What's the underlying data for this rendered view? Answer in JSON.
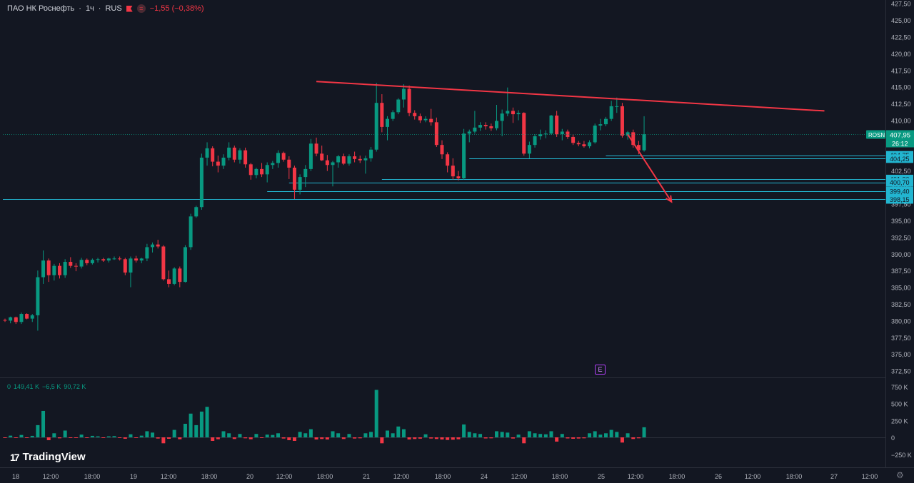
{
  "header": {
    "symbol": "ПАО НК Роснефть",
    "interval": "1ч",
    "exchange": "RUS",
    "dot": "·",
    "change": "−1,55 (−0,38%)",
    "eq_icon": "="
  },
  "volume_header": {
    "v1": "0",
    "v2": "149,41 K",
    "v3": "−6,5 K",
    "v4": "90,72 K"
  },
  "logo": {
    "text": "TradingView",
    "mark": "17"
  },
  "earnings_badge": "E",
  "settings_icon": "⚙",
  "colors": {
    "up": "#089981",
    "down": "#f23645",
    "bg": "#131722",
    "hline": "#22b5d0",
    "trend": "#f23645"
  },
  "chart_data": {
    "type": "candlestick",
    "price_axis": {
      "ticks": [
        "427,50",
        "425,00",
        "422,50",
        "420,00",
        "417,50",
        "415,00",
        "412,50",
        "410,00",
        "407,50",
        "405,00",
        "402,50",
        "400,00",
        "397,50",
        "395,00",
        "392,50",
        "390,00",
        "387,50",
        "385,00",
        "382,50",
        "380,00",
        "377,50",
        "375,00",
        "372,50"
      ],
      "ylim": [
        371.5,
        428
      ]
    },
    "volume_axis": {
      "ticks": [
        "750 K",
        "500 K",
        "250 K",
        "0",
        "−250 K"
      ]
    },
    "time_axis": {
      "labels": [
        "18",
        "12:00",
        "18:00",
        "19",
        "12:00",
        "18:00",
        "20",
        "12:00",
        "18:00",
        "21",
        "12:00",
        "18:00",
        "24",
        "12:00",
        "18:00",
        "25",
        "12:00",
        "18:00",
        "26",
        "12:00",
        "18:00",
        "27",
        "12:00"
      ]
    },
    "candles": [
      [
        380.1,
        380.3,
        379.8,
        380.0,
        30
      ],
      [
        380.0,
        380.6,
        379.6,
        380.5,
        25
      ],
      [
        380.5,
        380.6,
        379.5,
        379.8,
        20
      ],
      [
        379.8,
        381.2,
        379.5,
        381.0,
        35
      ],
      [
        381.0,
        381.1,
        380.2,
        380.3,
        30
      ],
      [
        380.3,
        381.0,
        379.8,
        380.8,
        22
      ],
      [
        380.8,
        387.5,
        378.5,
        386.5,
        180
      ],
      [
        386.5,
        390.5,
        385.5,
        389.0,
        390
      ],
      [
        389.0,
        389.3,
        385.8,
        386.8,
        120
      ],
      [
        386.8,
        388.5,
        386.0,
        388.2,
        60
      ],
      [
        388.2,
        388.6,
        386.3,
        386.8,
        40
      ],
      [
        386.8,
        389.2,
        386.4,
        388.8,
        100
      ],
      [
        388.8,
        389.5,
        387.9,
        388.2,
        30
      ],
      [
        388.2,
        388.6,
        387.4,
        388.1,
        25
      ],
      [
        388.1,
        389.4,
        387.8,
        389.1,
        40
      ],
      [
        389.1,
        389.3,
        388.3,
        388.6,
        20
      ],
      [
        388.6,
        389.3,
        388.4,
        389.1,
        22
      ],
      [
        389.1,
        389.4,
        388.7,
        389.2,
        15
      ],
      [
        389.2,
        389.4,
        388.8,
        389.0,
        12
      ],
      [
        389.0,
        389.4,
        388.7,
        389.3,
        15
      ],
      [
        389.3,
        389.6,
        389.1,
        389.3,
        18
      ],
      [
        389.3,
        389.6,
        389.0,
        389.2,
        20
      ],
      [
        389.2,
        389.4,
        386.8,
        387.2,
        60
      ],
      [
        387.2,
        389.6,
        385.0,
        389.3,
        45
      ],
      [
        389.3,
        389.7,
        388.7,
        389.0,
        30
      ],
      [
        389.0,
        389.4,
        388.6,
        389.3,
        25
      ],
      [
        389.3,
        391.5,
        388.9,
        391.0,
        90
      ],
      [
        391.0,
        391.7,
        390.2,
        391.4,
        70
      ],
      [
        391.4,
        392.1,
        390.8,
        391.1,
        50
      ],
      [
        391.1,
        391.3,
        386.0,
        386.2,
        250
      ],
      [
        386.2,
        387.5,
        385.0,
        385.5,
        60
      ],
      [
        385.5,
        388.0,
        385.3,
        387.8,
        110
      ],
      [
        387.8,
        388.1,
        385.0,
        385.8,
        80
      ],
      [
        385.8,
        391.3,
        385.7,
        391.0,
        200
      ],
      [
        391.0,
        396.0,
        390.6,
        395.6,
        350
      ],
      [
        395.6,
        397.2,
        395.4,
        397.0,
        180
      ],
      [
        397.0,
        405.0,
        396.6,
        404.4,
        380
      ],
      [
        404.4,
        406.7,
        403.2,
        405.8,
        450
      ],
      [
        405.8,
        406.1,
        403.1,
        403.8,
        150
      ],
      [
        403.8,
        404.7,
        402.2,
        403.2,
        80
      ],
      [
        403.2,
        404.9,
        402.7,
        404.4,
        90
      ],
      [
        404.4,
        406.7,
        404.0,
        405.9,
        60
      ],
      [
        405.9,
        406.2,
        403.7,
        404.1,
        70
      ],
      [
        404.1,
        405.8,
        403.5,
        405.5,
        50
      ],
      [
        405.5,
        405.9,
        402.9,
        403.4,
        40
      ],
      [
        403.4,
        403.6,
        401.1,
        401.8,
        80
      ],
      [
        401.8,
        402.9,
        401.3,
        402.7,
        50
      ],
      [
        402.7,
        403.6,
        401.5,
        401.9,
        30
      ],
      [
        401.9,
        403.7,
        400.7,
        403.3,
        40
      ],
      [
        403.3,
        403.9,
        402.7,
        403.6,
        35
      ],
      [
        403.6,
        405.5,
        402.9,
        405.1,
        60
      ],
      [
        405.1,
        405.3,
        403.8,
        404.1,
        50
      ],
      [
        404.1,
        404.6,
        401.2,
        402.9,
        120
      ],
      [
        402.9,
        403.2,
        398.2,
        399.6,
        150
      ],
      [
        399.6,
        401.9,
        398.9,
        401.5,
        80
      ],
      [
        401.5,
        403.3,
        400.0,
        402.7,
        60
      ],
      [
        402.7,
        407.2,
        402.4,
        406.5,
        120
      ],
      [
        406.5,
        407.4,
        404.6,
        405.0,
        90
      ],
      [
        405.0,
        406.2,
        403.9,
        404.0,
        70
      ],
      [
        404.0,
        404.8,
        402.4,
        403.3,
        90
      ],
      [
        403.3,
        403.9,
        400.1,
        403.7,
        90
      ],
      [
        403.7,
        404.8,
        402.9,
        404.6,
        60
      ],
      [
        404.6,
        405.0,
        403.3,
        403.5,
        70
      ],
      [
        403.5,
        404.9,
        403.2,
        404.6,
        50
      ],
      [
        404.6,
        405.3,
        403.7,
        404.2,
        50
      ],
      [
        404.2,
        404.7,
        403.6,
        404.0,
        40
      ],
      [
        404.0,
        404.7,
        402.0,
        404.3,
        60
      ],
      [
        404.3,
        406.0,
        403.8,
        405.6,
        80
      ],
      [
        405.6,
        415.6,
        405.3,
        412.6,
        700
      ],
      [
        412.6,
        413.9,
        408.2,
        409.0,
        250
      ],
      [
        409.0,
        410.6,
        407.0,
        410.2,
        100
      ],
      [
        410.2,
        411.5,
        409.9,
        411.2,
        60
      ],
      [
        411.2,
        413.3,
        410.9,
        413.1,
        160
      ],
      [
        413.1,
        415.4,
        411.9,
        414.7,
        120
      ],
      [
        414.7,
        415.2,
        410.6,
        411.1,
        90
      ],
      [
        411.1,
        411.5,
        410.1,
        410.6,
        70
      ],
      [
        410.6,
        411.0,
        409.6,
        410.0,
        55
      ],
      [
        410.0,
        410.6,
        409.7,
        410.2,
        45
      ],
      [
        410.2,
        411.7,
        409.2,
        409.7,
        50
      ],
      [
        409.7,
        410.4,
        406.0,
        406.3,
        70
      ],
      [
        406.3,
        407.0,
        404.2,
        404.9,
        90
      ],
      [
        404.9,
        405.2,
        402.2,
        403.2,
        110
      ],
      [
        403.2,
        404.3,
        401.1,
        401.6,
        100
      ],
      [
        401.6,
        402.4,
        401.0,
        401.3,
        80
      ],
      [
        401.3,
        408.7,
        401.1,
        408.0,
        190
      ],
      [
        408.0,
        408.6,
        406.7,
        408.3,
        80
      ],
      [
        408.3,
        411.4,
        408.0,
        408.9,
        60
      ],
      [
        408.9,
        409.7,
        408.4,
        409.3,
        50
      ],
      [
        409.3,
        409.7,
        408.6,
        409.1,
        45
      ],
      [
        409.1,
        409.5,
        408.4,
        408.8,
        40
      ],
      [
        408.8,
        412.3,
        408.5,
        409.9,
        90
      ],
      [
        409.9,
        411.6,
        407.6,
        411.0,
        80
      ],
      [
        411.0,
        414.9,
        410.6,
        411.4,
        70
      ],
      [
        411.4,
        411.9,
        409.6,
        410.9,
        50
      ],
      [
        410.9,
        411.5,
        410.0,
        411.1,
        40
      ],
      [
        411.1,
        411.2,
        404.7,
        405.0,
        250
      ],
      [
        405.0,
        406.8,
        404.3,
        406.3,
        90
      ],
      [
        406.3,
        407.9,
        405.9,
        407.6,
        60
      ],
      [
        407.6,
        408.6,
        407.1,
        407.9,
        50
      ],
      [
        407.9,
        408.5,
        407.3,
        408.0,
        45
      ],
      [
        408.0,
        410.8,
        407.8,
        410.7,
        90
      ],
      [
        410.7,
        411.4,
        407.5,
        407.9,
        180
      ],
      [
        407.9,
        408.7,
        407.0,
        408.3,
        50
      ],
      [
        408.3,
        408.6,
        407.2,
        407.5,
        45
      ],
      [
        407.5,
        407.9,
        406.3,
        406.6,
        60
      ],
      [
        406.6,
        406.9,
        406.1,
        406.4,
        50
      ],
      [
        406.4,
        406.9,
        405.9,
        406.1,
        40
      ],
      [
        406.1,
        407.0,
        405.8,
        406.7,
        60
      ],
      [
        406.7,
        409.5,
        406.5,
        409.2,
        90
      ],
      [
        409.2,
        410.2,
        408.5,
        409.4,
        40
      ],
      [
        409.4,
        410.5,
        409.1,
        410.2,
        60
      ],
      [
        410.2,
        412.9,
        409.9,
        412.1,
        110
      ],
      [
        412.1,
        413.4,
        411.1,
        412.1,
        80
      ],
      [
        412.1,
        412.6,
        407.4,
        407.7,
        220
      ],
      [
        407.7,
        408.4,
        407.1,
        408.2,
        60
      ],
      [
        408.2,
        408.6,
        405.9,
        406.3,
        70
      ],
      [
        406.3,
        406.9,
        404.9,
        405.5,
        40
      ],
      [
        405.5,
        410.6,
        405.3,
        407.9,
        149
      ]
    ],
    "horizontal_levels": [
      {
        "price": 404.75,
        "label": "404,75",
        "x_start_bar": 110
      },
      {
        "price": 404.25,
        "label": "404,25",
        "x_start_bar": 85
      },
      {
        "price": 401.2,
        "label": "401,20",
        "x_start_bar": 69
      },
      {
        "price": 400.7,
        "label": "400,70",
        "x_start_bar": 52
      },
      {
        "price": 399.4,
        "label": "399,40",
        "x_start_bar": 48
      },
      {
        "price": 398.15,
        "label": "398,15",
        "x_start_bar": 0
      }
    ],
    "trend_line": {
      "from": {
        "bar": 57,
        "price": 415.8
      },
      "to": {
        "bar": 150,
        "price": 411.4
      }
    },
    "arrow": {
      "from": {
        "bar": 114,
        "price": 407.9
      },
      "to": {
        "bar": 122,
        "price": 397.8
      }
    },
    "last_price": {
      "symbol": "ROSN",
      "price": "407,95",
      "countdown": "26:12",
      "value": 407.95
    }
  }
}
